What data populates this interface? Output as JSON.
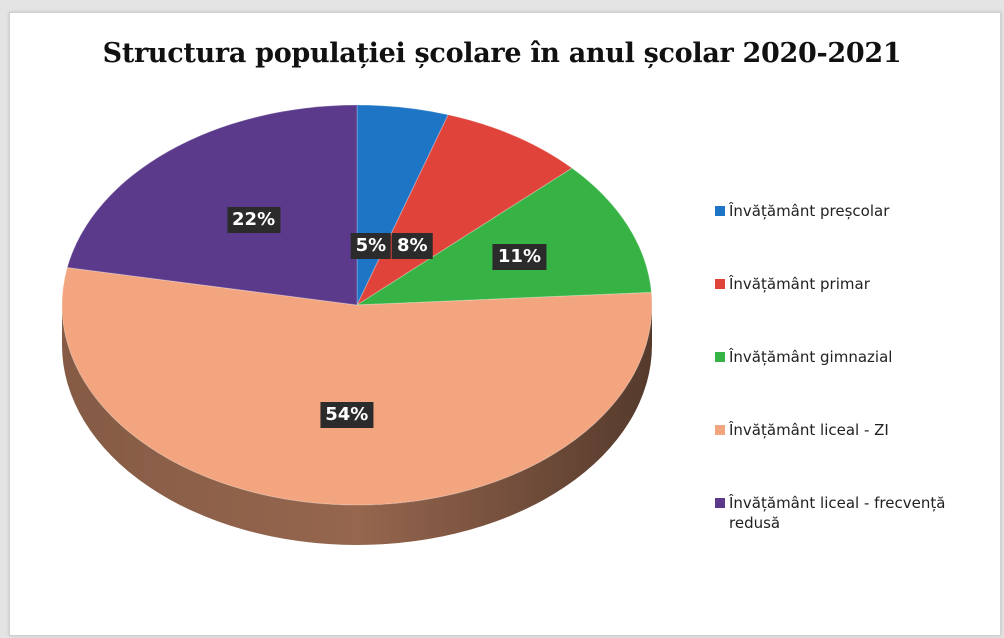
{
  "chart_data": {
    "type": "pie",
    "title": "Structura populației școlare în anul școlar 2020-2021",
    "legend_position": "right",
    "series": [
      {
        "name": "Învățământ preșcolar",
        "value": 5,
        "label": "5%",
        "color": "#1f75c5"
      },
      {
        "name": "Învățământ primar",
        "value": 8,
        "label": "8%",
        "color": "#e0433a"
      },
      {
        "name": "Învățământ gimnazial",
        "value": 11,
        "label": "11%",
        "color": "#36b344"
      },
      {
        "name": "Învățământ liceal - ZI",
        "value": 54,
        "label": "54%",
        "color": "#f2a57e"
      },
      {
        "name": "Învățământ liceal - frecvență redusă",
        "value": 22,
        "label": "22%",
        "color": "#5b3a8c"
      }
    ]
  }
}
